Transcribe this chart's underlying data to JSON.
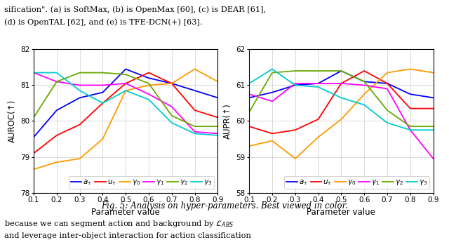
{
  "x": [
    0.1,
    0.2,
    0.3,
    0.4,
    0.5,
    0.6,
    0.7,
    0.8,
    0.9
  ],
  "auroc": {
    "a_tau": [
      79.55,
      80.3,
      80.65,
      80.8,
      81.45,
      81.2,
      81.05,
      80.85,
      80.65
    ],
    "u_tau": [
      79.1,
      79.6,
      79.9,
      80.5,
      81.05,
      81.35,
      81.05,
      80.3,
      80.1
    ],
    "gamma0": [
      78.65,
      78.85,
      78.95,
      79.5,
      80.85,
      81.0,
      81.05,
      81.45,
      81.1
    ],
    "gamma1": [
      81.35,
      81.1,
      81.0,
      81.0,
      81.05,
      80.75,
      80.4,
      79.7,
      79.65
    ],
    "gamma2": [
      80.1,
      81.1,
      81.35,
      81.35,
      81.3,
      81.05,
      80.15,
      79.85,
      79.85
    ],
    "gamma3": [
      81.35,
      81.35,
      80.85,
      80.5,
      80.85,
      80.6,
      79.95,
      79.65,
      79.6
    ]
  },
  "aupr": {
    "a_tau": [
      60.65,
      60.8,
      61.0,
      61.05,
      61.4,
      61.1,
      61.05,
      60.75,
      60.65
    ],
    "u_tau": [
      59.85,
      59.65,
      59.75,
      60.05,
      61.05,
      61.4,
      61.05,
      60.35,
      60.35
    ],
    "gamma0": [
      59.3,
      59.45,
      58.95,
      59.55,
      60.05,
      60.75,
      61.35,
      61.45,
      61.35
    ],
    "gamma1": [
      60.75,
      60.55,
      61.05,
      61.05,
      61.05,
      61.0,
      60.9,
      59.75,
      58.95
    ],
    "gamma2": [
      60.25,
      61.35,
      61.4,
      61.4,
      61.4,
      61.1,
      60.3,
      59.85,
      59.85
    ],
    "gamma3": [
      61.05,
      61.45,
      61.0,
      60.95,
      60.65,
      60.45,
      59.95,
      59.75,
      59.75
    ]
  },
  "colors": {
    "a_tau": "#0000ff",
    "u_tau": "#ff0000",
    "gamma0": "#ff9900",
    "gamma1": "#ff00ff",
    "gamma2": "#66aa00",
    "gamma3": "#00cccc"
  },
  "auroc_ylim": [
    78,
    82
  ],
  "aupr_ylim": [
    58,
    62
  ],
  "xlabel": "Parameter value",
  "auroc_ylabel": "AUROC(↑)",
  "aupr_ylabel": "AUPR(↑)",
  "legend_labels": [
    "$a_{\\tau}$",
    "$u_{\\tau}$",
    "$\\gamma_0$",
    "$\\gamma_1$",
    "$\\gamma_2$",
    "$\\gamma_3$"
  ],
  "caption": "Fig. 5: Analysis on hyper-parameters. Best viewed in color.",
  "text_top_1": "sification\". (a) is SoftMax, (b) is OpenMax [60], (c) is DEAR [61],",
  "text_top_2": "(d) is OpenTAL [62], and (e) is TFE-DCN(+) [63].",
  "text_bottom_1": "because we can segment action and background by $\\mathcal{L}_{ABS}$",
  "text_bottom_2": "and leverage inter-object interaction for action classification"
}
